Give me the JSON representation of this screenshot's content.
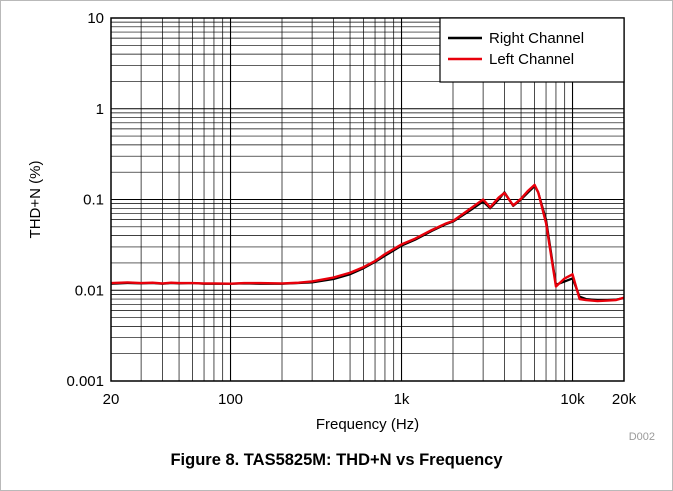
{
  "caption": "Figure 8. TAS5825M: THD+N vs Frequency",
  "figure_code": "D002",
  "chart_data": {
    "type": "line",
    "title": "",
    "xlabel": "Frequency (Hz)",
    "ylabel": "THD+N (%)",
    "x_scale": "log",
    "y_scale": "log",
    "xlim": [
      20,
      20000
    ],
    "ylim": [
      0.001,
      10
    ],
    "x_ticks": [
      {
        "value": 20,
        "label": "20"
      },
      {
        "value": 100,
        "label": "100"
      },
      {
        "value": 1000,
        "label": "1k"
      },
      {
        "value": 10000,
        "label": "10k"
      },
      {
        "value": 20000,
        "label": "20k"
      }
    ],
    "y_ticks": [
      {
        "value": 0.001,
        "label": "0.001"
      },
      {
        "value": 0.01,
        "label": "0.01"
      },
      {
        "value": 0.1,
        "label": "0.1"
      },
      {
        "value": 1,
        "label": "1"
      },
      {
        "value": 10,
        "label": "10"
      }
    ],
    "grid": true,
    "legend_position": "top-right",
    "series": [
      {
        "name": "Right Channel",
        "color": "#000000",
        "x": [
          20,
          25,
          30,
          35,
          40,
          45,
          50,
          60,
          70,
          80,
          100,
          120,
          150,
          200,
          250,
          300,
          400,
          500,
          600,
          700,
          800,
          1000,
          1200,
          1500,
          1800,
          2000,
          2500,
          3000,
          3300,
          3700,
          4000,
          4500,
          5000,
          5500,
          6000,
          6300,
          7000,
          8000,
          9000,
          10000,
          11000,
          12000,
          14000,
          16000,
          18000,
          20000
        ],
        "y": [
          0.0118,
          0.012,
          0.0119,
          0.012,
          0.0118,
          0.012,
          0.0119,
          0.012,
          0.0118,
          0.0118,
          0.0118,
          0.0119,
          0.0118,
          0.0118,
          0.012,
          0.0122,
          0.0133,
          0.015,
          0.0175,
          0.0205,
          0.024,
          0.031,
          0.036,
          0.045,
          0.053,
          0.057,
          0.075,
          0.095,
          0.08,
          0.1,
          0.12,
          0.085,
          0.1,
          0.12,
          0.14,
          0.12,
          0.06,
          0.0115,
          0.0125,
          0.0135,
          0.0085,
          0.008,
          0.0078,
          0.0078,
          0.0079,
          0.0082
        ]
      },
      {
        "name": "Left Channel",
        "color": "#e8000b",
        "x": [
          20,
          25,
          30,
          35,
          40,
          45,
          50,
          60,
          70,
          80,
          100,
          120,
          150,
          200,
          250,
          300,
          400,
          500,
          600,
          700,
          800,
          1000,
          1200,
          1500,
          1800,
          2000,
          2500,
          3000,
          3300,
          3700,
          4000,
          4500,
          5000,
          5500,
          6000,
          6300,
          7000,
          8000,
          9000,
          10000,
          11000,
          12000,
          14000,
          16000,
          18000,
          20000
        ],
        "y": [
          0.012,
          0.0122,
          0.012,
          0.0121,
          0.0119,
          0.0121,
          0.012,
          0.012,
          0.0119,
          0.0119,
          0.0118,
          0.012,
          0.012,
          0.0119,
          0.0121,
          0.0125,
          0.0138,
          0.0156,
          0.018,
          0.021,
          0.025,
          0.032,
          0.037,
          0.046,
          0.054,
          0.058,
          0.078,
          0.1,
          0.082,
          0.105,
          0.118,
          0.086,
          0.102,
          0.125,
          0.145,
          0.12,
          0.055,
          0.011,
          0.0135,
          0.015,
          0.008,
          0.0078,
          0.0076,
          0.0077,
          0.0078,
          0.0083
        ]
      }
    ]
  }
}
